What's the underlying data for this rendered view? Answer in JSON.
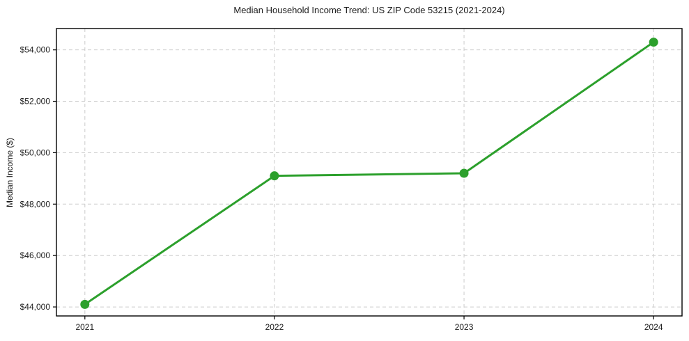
{
  "figure": {
    "background": "#ffffff"
  },
  "chart_data": {
    "type": "line",
    "title": "Median Household Income Trend: US ZIP Code 53215 (2021-2024)",
    "xlabel": "",
    "ylabel": "Median Income ($)",
    "x": [
      2021,
      2022,
      2023,
      2024
    ],
    "xtick_labels": [
      "2021",
      "2022",
      "2023",
      "2024"
    ],
    "values": [
      44100,
      49100,
      49200,
      54300
    ],
    "ytick_values": [
      44000,
      46000,
      48000,
      50000,
      52000,
      54000
    ],
    "ytick_labels": [
      "$44,000",
      "$46,000",
      "$48,000",
      "$50,000",
      "$52,000",
      "$54,000"
    ],
    "ylim": [
      43650,
      54830
    ],
    "xlim": [
      2020.85,
      2024.15
    ],
    "grid": true,
    "grid_style": "dashed",
    "grid_color": "#cccccc",
    "axis_color": "#000000",
    "tick_label_color": "#1a1a1a",
    "line_color": "#2ca02c",
    "marker": "circle",
    "marker_color": "#2ca02c",
    "line_width": 3,
    "marker_radius": 6.5,
    "legend": false
  }
}
